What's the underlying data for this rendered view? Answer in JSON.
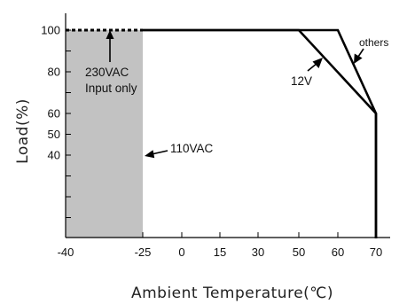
{
  "chart_data": {
    "type": "line",
    "xlabel": "Ambient Temperature(℃)",
    "ylabel": "Load(%)",
    "x_ticks": [
      -40,
      -25,
      0,
      15,
      30,
      50,
      60,
      70
    ],
    "x_tick_labels": [
      "-40",
      "-25",
      "0",
      "15",
      "30",
      "50",
      "60",
      "70"
    ],
    "y_ticks": [
      40,
      50,
      60,
      80,
      100
    ],
    "y_tick_labels": [
      "40",
      "50",
      "60",
      "80",
      "100"
    ],
    "xlim": [
      -40,
      80
    ],
    "ylim": [
      0,
      110
    ],
    "series": [
      {
        "name": "others",
        "x": [
          -25,
          60,
          70,
          70
        ],
        "y": [
          100,
          100,
          60,
          0
        ]
      },
      {
        "name": "12V",
        "x": [
          -25,
          50,
          70,
          70
        ],
        "y": [
          100,
          100,
          60,
          0
        ]
      },
      {
        "name": "230VAC Input only",
        "x": [
          -40,
          -25
        ],
        "y": [
          100,
          100
        ]
      }
    ],
    "shaded_region": {
      "x": [
        -40,
        -25
      ],
      "label": "110VAC"
    },
    "annotations": [
      {
        "text_lines": [
          "230VAC",
          "Input only"
        ]
      },
      {
        "text_lines": [
          "110VAC"
        ]
      },
      {
        "text_lines": [
          "12V"
        ]
      },
      {
        "text_lines": [
          "others"
        ]
      }
    ],
    "grid": false,
    "colors": {
      "shade": "#c2c2c2",
      "line": "#000000"
    }
  }
}
